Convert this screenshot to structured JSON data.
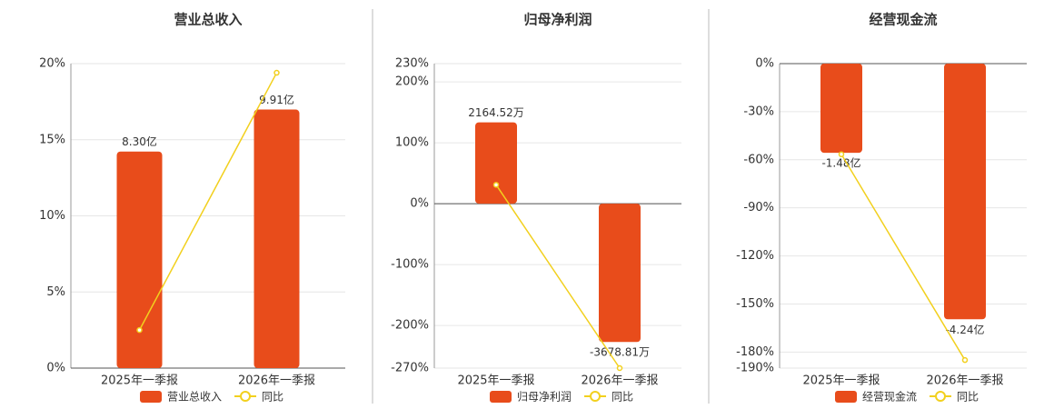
{
  "chart_data": [
    {
      "type": "bar",
      "title": "营业总收入",
      "categories": [
        "2025年一季报",
        "2026年一季报"
      ],
      "series": [
        {
          "name": "营业总收入",
          "type": "bar",
          "axis": "y2",
          "color": "#e84c1b",
          "values": [
            8.3,
            9.91
          ],
          "value_labels": [
            "8.30亿",
            "9.91亿"
          ]
        },
        {
          "name": "同比",
          "type": "line",
          "color": "#f2d01e",
          "values": [
            2.5,
            19.4
          ]
        }
      ],
      "ylim": [
        0,
        20
      ],
      "yticks": [
        {
          "value": 0,
          "label": "0%"
        },
        {
          "value": 5,
          "label": "5%"
        },
        {
          "value": 10,
          "label": "10%"
        },
        {
          "value": 15,
          "label": "15%"
        },
        {
          "value": 20,
          "label": "20%"
        }
      ],
      "y2lim": [
        0,
        11.67
      ],
      "grid": true
    },
    {
      "type": "bar",
      "title": "归母净利润",
      "categories": [
        "2025年一季报",
        "2026年一季报"
      ],
      "series": [
        {
          "name": "归母净利润",
          "type": "bar",
          "axis": "y2",
          "color": "#e84c1b",
          "values": [
            2164.52,
            -3678.81
          ],
          "value_labels": [
            "2164.52万",
            "-3678.81万"
          ]
        },
        {
          "name": "同比",
          "type": "line",
          "color": "#f2d01e",
          "values": [
            31,
            -270
          ]
        }
      ],
      "ylim": [
        -270,
        230
      ],
      "yticks": [
        {
          "value": -270,
          "label": "-270%"
        },
        {
          "value": -200,
          "label": "-200%"
        },
        {
          "value": -100,
          "label": "-100%"
        },
        {
          "value": 0,
          "label": "0%"
        },
        {
          "value": 100,
          "label": "100%"
        },
        {
          "value": 200,
          "label": "200%"
        },
        {
          "value": 230,
          "label": "230%"
        }
      ],
      "y2lim": [
        -4374,
        3726
      ],
      "grid": true
    },
    {
      "type": "bar",
      "title": "经营现金流",
      "categories": [
        "2025年一季报",
        "2026年一季报"
      ],
      "series": [
        {
          "name": "经营现金流",
          "type": "bar",
          "axis": "y2",
          "color": "#e84c1b",
          "values": [
            -1.48,
            -4.24
          ],
          "value_labels": [
            "-1.48亿",
            "-4.24亿"
          ]
        },
        {
          "name": "同比",
          "type": "line",
          "color": "#f2d01e",
          "values": [
            -56.6,
            -185
          ]
        }
      ],
      "ylim": [
        -190,
        0
      ],
      "yticks": [
        {
          "value": -190,
          "label": "-190%"
        },
        {
          "value": -180,
          "label": "-180%"
        },
        {
          "value": -150,
          "label": "-150%"
        },
        {
          "value": -120,
          "label": "-120%"
        },
        {
          "value": -90,
          "label": "-90%"
        },
        {
          "value": -60,
          "label": "-60%"
        },
        {
          "value": -30,
          "label": "-30%"
        },
        {
          "value": 0,
          "label": "0%"
        }
      ],
      "y2lim": [
        -5.05,
        0
      ],
      "grid": true
    }
  ]
}
